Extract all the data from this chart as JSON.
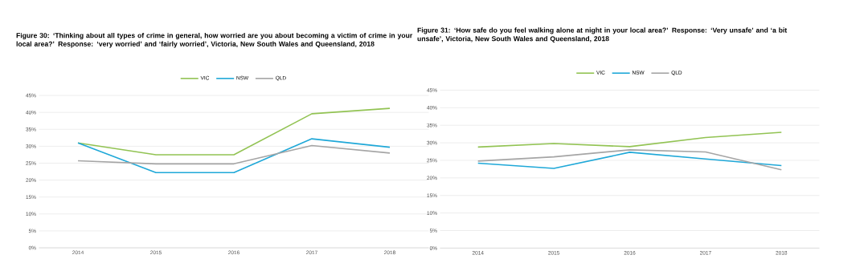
{
  "chart_data": [
    {
      "type": "line",
      "title": "Figure 30: ‘Thinking about all types of crime in general, how worried are you about becoming a victim of crime in your local area?’ Response: ‘very worried’ and ‘fairly worried’, Victoria, New South Wales and Queensland, 2018",
      "categories": [
        "2014",
        "2015",
        "2016",
        "2017",
        "2018"
      ],
      "series": [
        {
          "name": "VIC",
          "color": "#92c353",
          "values": [
            31.0,
            27.5,
            27.5,
            39.6,
            41.2
          ]
        },
        {
          "name": "NSW",
          "color": "#1fa8d8",
          "values": [
            31.0,
            22.2,
            22.2,
            32.2,
            29.7
          ]
        },
        {
          "name": "QLD",
          "color": "#a5a5a5",
          "values": [
            25.7,
            24.8,
            24.8,
            30.2,
            28.0
          ]
        }
      ],
      "ylim": [
        0,
        45
      ],
      "yticks": [
        {
          "value": 0,
          "label": "0%"
        },
        {
          "value": 5,
          "label": "5%"
        },
        {
          "value": 10,
          "label": "10%"
        },
        {
          "value": 15,
          "label": "15%"
        },
        {
          "value": 20,
          "label": "20%"
        },
        {
          "value": 25,
          "label": "25%"
        },
        {
          "value": 30,
          "label": "30%"
        },
        {
          "value": 35,
          "label": "35%"
        },
        {
          "value": 40,
          "label": "40%"
        },
        {
          "value": 45,
          "label": "45%"
        }
      ],
      "grid": "y",
      "legend": "top"
    },
    {
      "type": "line",
      "title": "Figure 31: ‘How safe do you feel walking alone at night in your local area?’ Response: ‘Very unsafe’ and ‘a bit unsafe’, Victoria, New South Wales and Queensland, 2018",
      "categories": [
        "2014",
        "2015",
        "2016",
        "2017",
        "2018"
      ],
      "series": [
        {
          "name": "VIC",
          "color": "#92c353",
          "values": [
            28.8,
            29.8,
            28.9,
            31.5,
            33.0
          ]
        },
        {
          "name": "NSW",
          "color": "#1fa8d8",
          "values": [
            24.2,
            22.7,
            27.3,
            25.4,
            23.5
          ]
        },
        {
          "name": "QLD",
          "color": "#a5a5a5",
          "values": [
            24.8,
            26.0,
            28.0,
            27.4,
            22.3
          ]
        }
      ],
      "ylim": [
        0,
        45
      ],
      "yticks": [
        {
          "value": 0,
          "label": "0%"
        },
        {
          "value": 5,
          "label": "5%"
        },
        {
          "value": 10,
          "label": "10%"
        },
        {
          "value": 15,
          "label": "15%"
        },
        {
          "value": 20,
          "label": "20%"
        },
        {
          "value": 25,
          "label": "25%"
        },
        {
          "value": 30,
          "label": "30%"
        },
        {
          "value": 35,
          "label": "35%"
        },
        {
          "value": 40,
          "label": "40%"
        },
        {
          "value": 45,
          "label": "45%"
        }
      ],
      "grid": "y",
      "legend": "top"
    }
  ]
}
